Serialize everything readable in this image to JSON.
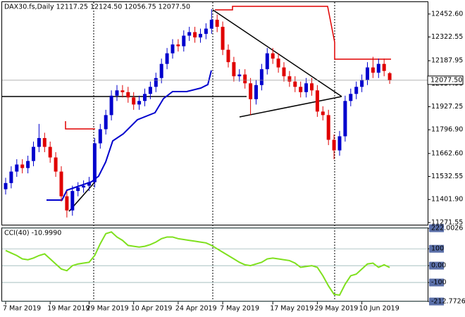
{
  "chart_data": [
    {
      "type": "candlestick",
      "title": "DAX30.fs,Daily  12117.25 12124.50 12056.75 12077.50",
      "categories": [
        "7 Mar 2019",
        null,
        null,
        null,
        null,
        null,
        null,
        null,
        "19 Mar 2019",
        null,
        null,
        null,
        null,
        null,
        null,
        "29 Mar 2019",
        null,
        null,
        null,
        null,
        null,
        null,
        null,
        "10 Apr 2019",
        null,
        null,
        null,
        null,
        null,
        null,
        null,
        "24 Apr 2019",
        null,
        null,
        null,
        null,
        null,
        null,
        null,
        "7 May 2019",
        null,
        null,
        null,
        null,
        null,
        null,
        null,
        null,
        "17 May 2019",
        null,
        null,
        null,
        null,
        null,
        null,
        null,
        "29 May 2019",
        null,
        null,
        null,
        null,
        null,
        null,
        null,
        "10 Jun 2019",
        null,
        null,
        null,
        null,
        null
      ],
      "open": [
        11460,
        11495,
        11560,
        11600,
        11580,
        11620,
        11700,
        11750,
        11700,
        11640,
        11560,
        11420,
        11340,
        11450,
        11470,
        11480,
        11500,
        11720,
        11800,
        11880,
        11990,
        12020,
        12010,
        11980,
        11940,
        11960,
        12000,
        12040,
        12090,
        12170,
        12230,
        12280,
        12270,
        12330,
        12350,
        12320,
        12340,
        12370,
        12420,
        12380,
        12250,
        12180,
        12100,
        12110,
        12060,
        11970,
        12050,
        12140,
        12230,
        12200,
        12150,
        12100,
        12070,
        12040,
        12010,
        12060,
        12020,
        11900,
        11880,
        11740,
        11680,
        11760,
        11960,
        12000,
        12040,
        12080,
        12150,
        12120,
        12170,
        12117.25
      ],
      "high": [
        11525,
        11590,
        11630,
        11630,
        11650,
        11730,
        11830,
        11780,
        11730,
        11670,
        11590,
        11450,
        11480,
        11500,
        11510,
        11530,
        11750,
        11830,
        11910,
        12020,
        12050,
        12050,
        12040,
        12010,
        11990,
        12030,
        12070,
        12120,
        12200,
        12260,
        12310,
        12310,
        12360,
        12380,
        12380,
        12370,
        12400,
        12480,
        12450,
        12410,
        12280,
        12210,
        12140,
        12140,
        12090,
        12080,
        12170,
        12260,
        12260,
        12230,
        12180,
        12130,
        12100,
        12070,
        12090,
        12090,
        12050,
        11930,
        11910,
        11770,
        11790,
        11990,
        12030,
        12070,
        12110,
        12180,
        12210,
        12200,
        12200,
        12124.5
      ],
      "low": [
        11430,
        11465,
        11530,
        11550,
        11550,
        11590,
        11670,
        11670,
        11610,
        11530,
        11390,
        11300,
        11310,
        11420,
        11440,
        11450,
        11470,
        11690,
        11770,
        11850,
        11960,
        11980,
        11950,
        11910,
        11910,
        11930,
        11970,
        12010,
        12060,
        12140,
        12200,
        12240,
        12240,
        12300,
        12290,
        12290,
        12310,
        12340,
        12350,
        12220,
        12150,
        12070,
        12070,
        12030,
        11880,
        11940,
        12020,
        12110,
        12170,
        12120,
        12070,
        12040,
        12010,
        11980,
        11980,
        11990,
        11870,
        11850,
        11710,
        11630,
        11650,
        11730,
        11930,
        11970,
        12010,
        12050,
        12090,
        12090,
        12100,
        12056.75
      ],
      "close": [
        11495,
        11560,
        11600,
        11580,
        11620,
        11700,
        11750,
        11700,
        11640,
        11560,
        11420,
        11340,
        11450,
        11470,
        11480,
        11500,
        11720,
        11800,
        11880,
        11990,
        12020,
        12010,
        11980,
        11940,
        11960,
        12000,
        12040,
        12090,
        12170,
        12230,
        12280,
        12270,
        12330,
        12350,
        12320,
        12340,
        12370,
        12420,
        12380,
        12250,
        12180,
        12100,
        12110,
        12060,
        11970,
        12050,
        12140,
        12230,
        12200,
        12150,
        12100,
        12070,
        12040,
        12010,
        12060,
        12020,
        11900,
        11880,
        11740,
        11680,
        11760,
        11960,
        12000,
        12040,
        12080,
        12150,
        12120,
        12170,
        12130,
        12077.5
      ],
      "up_color": "#0000cd",
      "down_color": "#e00000",
      "ylim": [
        11255,
        12520
      ],
      "yticks": [
        {
          "value": 12452.6,
          "label": "12452.60"
        },
        12322.55,
        12187.95,
        {
          "value": 12057.9,
          "label": "12057.90"
        },
        11927.25,
        {
          "value": 11796.9,
          "label": "11796.90"
        },
        {
          "value": 11662.6,
          "label": "11662.60"
        },
        11532.55,
        {
          "value": 11401.9,
          "label": "11401.90"
        },
        11271.55
      ],
      "current_price": {
        "value": 12077.5,
        "label": "12077.50"
      }
    },
    {
      "type": "line",
      "title": "CCI(40) -10.9990",
      "values": [
        90,
        75,
        60,
        40,
        35,
        45,
        60,
        70,
        40,
        10,
        -20,
        -30,
        0,
        10,
        15,
        20,
        60,
        130,
        190,
        200,
        170,
        150,
        120,
        115,
        110,
        115,
        125,
        140,
        160,
        170,
        170,
        160,
        155,
        150,
        145,
        140,
        135,
        120,
        100,
        80,
        60,
        40,
        20,
        5,
        0,
        10,
        20,
        40,
        45,
        40,
        35,
        30,
        15,
        -10,
        -5,
        0,
        -10,
        -60,
        -120,
        -170,
        -175,
        -110,
        -60,
        -50,
        -20,
        10,
        15,
        -10,
        5,
        -10.999
      ],
      "color": "#7fe01e",
      "ylim": [
        -212.7726,
        222.0026
      ],
      "yticks": [
        222.0026,
        100,
        {
          "value": 0,
          "label": "0.00"
        },
        -100,
        -212.7726
      ]
    }
  ]
}
